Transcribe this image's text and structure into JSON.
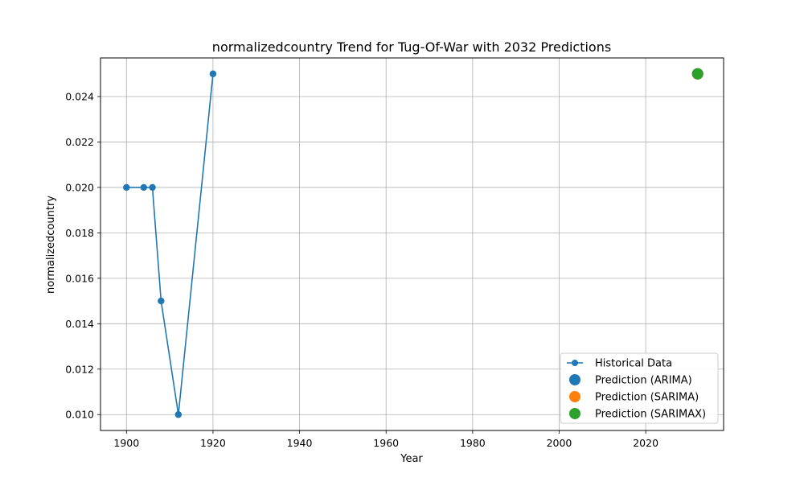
{
  "chart_data": {
    "type": "line",
    "title": "normalizedcountry Trend for Tug-Of-War with 2032 Predictions",
    "xlabel": "Year",
    "ylabel": "normalizedcountry",
    "xlim": [
      1894,
      2038
    ],
    "ylim": [
      0.0093,
      0.0257
    ],
    "xticks": [
      1900,
      1920,
      1940,
      1960,
      1980,
      2000,
      2020
    ],
    "yticks": [
      0.01,
      0.012,
      0.014,
      0.016,
      0.018,
      0.02,
      0.022,
      0.024
    ],
    "ytick_labels": [
      "0.010",
      "0.012",
      "0.014",
      "0.016",
      "0.018",
      "0.020",
      "0.022",
      "0.024"
    ],
    "grid": true,
    "legend_position": "lower-right",
    "series": [
      {
        "name": "Historical Data",
        "kind": "line-marker",
        "color": "#1f77b4",
        "x": [
          1900,
          1904,
          1906,
          1908,
          1912,
          1920
        ],
        "y": [
          0.02,
          0.02,
          0.02,
          0.015,
          0.01,
          0.025
        ]
      },
      {
        "name": "Prediction (ARIMA)",
        "kind": "point",
        "color": "#1f77b4",
        "x": [
          2032
        ],
        "y": [
          0.025
        ]
      },
      {
        "name": "Prediction (SARIMA)",
        "kind": "point",
        "color": "#ff7f0e",
        "x": [
          2032
        ],
        "y": [
          0.025
        ]
      },
      {
        "name": "Prediction (SARIMAX)",
        "kind": "point",
        "color": "#2ca02c",
        "x": [
          2032
        ],
        "y": [
          0.025
        ]
      }
    ]
  }
}
